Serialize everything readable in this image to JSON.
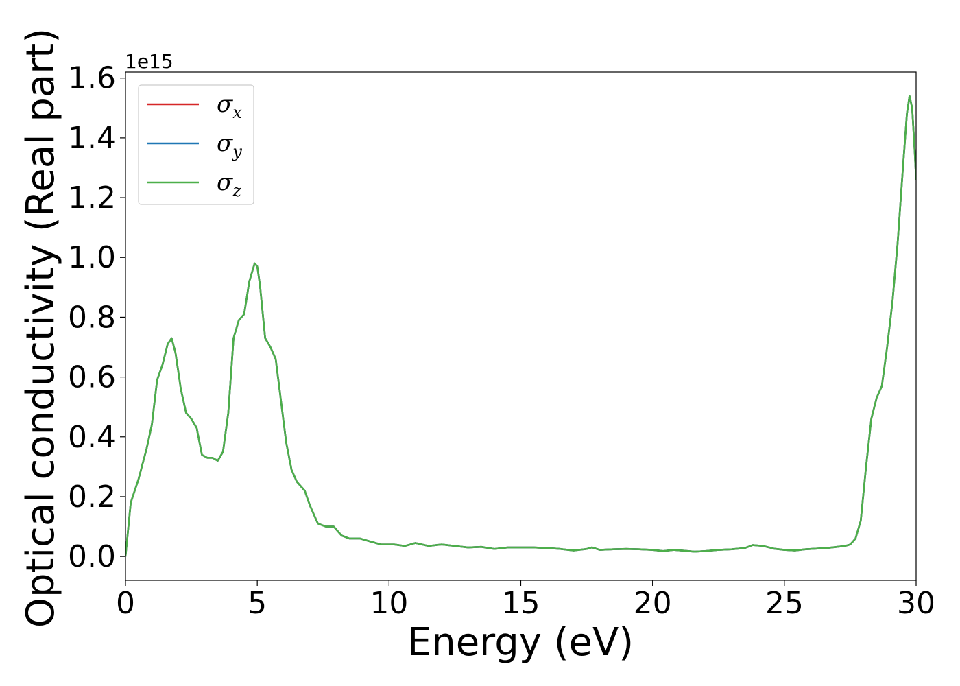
{
  "chart_data": {
    "type": "line",
    "xlabel": "Energy (eV)",
    "ylabel": "Optical conductivity (Real part)",
    "y_offset_text": "1e15",
    "xlim": [
      0,
      30
    ],
    "ylim": [
      -0.08,
      1.62
    ],
    "x_ticks": [
      0,
      5,
      10,
      15,
      20,
      25,
      30
    ],
    "x_tick_labels": [
      "0",
      "5",
      "10",
      "15",
      "20",
      "25",
      "30"
    ],
    "y_ticks": [
      0.0,
      0.2,
      0.4,
      0.6,
      0.8,
      1.0,
      1.2,
      1.4,
      1.6
    ],
    "y_tick_labels": [
      "0.0",
      "0.2",
      "0.4",
      "0.6",
      "0.8",
      "1.0",
      "1.2",
      "1.4",
      "1.6"
    ],
    "grid": false,
    "legend_position": "top-left",
    "x": [
      0,
      0.2,
      0.5,
      0.8,
      1.0,
      1.2,
      1.4,
      1.6,
      1.75,
      1.9,
      2.1,
      2.3,
      2.5,
      2.7,
      2.9,
      3.1,
      3.3,
      3.5,
      3.7,
      3.9,
      4.1,
      4.3,
      4.5,
      4.7,
      4.9,
      5.0,
      5.1,
      5.3,
      5.5,
      5.7,
      5.9,
      6.1,
      6.3,
      6.5,
      6.8,
      7.0,
      7.3,
      7.6,
      7.9,
      8.2,
      8.5,
      8.9,
      9.3,
      9.7,
      10.2,
      10.6,
      11.0,
      11.5,
      12.0,
      12.5,
      13.0,
      13.5,
      14.0,
      14.5,
      15.0,
      15.5,
      16.0,
      16.5,
      17.0,
      17.5,
      17.7,
      18.0,
      18.5,
      19.0,
      19.5,
      20.0,
      20.4,
      20.8,
      21.2,
      21.6,
      22.0,
      22.5,
      23.0,
      23.5,
      23.8,
      24.2,
      24.6,
      25.0,
      25.4,
      25.8,
      26.2,
      26.6,
      27.0,
      27.3,
      27.5,
      27.7,
      27.9,
      28.1,
      28.3,
      28.5,
      28.7,
      28.9,
      29.1,
      29.3,
      29.5,
      29.65,
      29.75,
      29.85,
      29.95,
      30.0
    ],
    "series": [
      {
        "name": "σx",
        "color": "#d62728",
        "values": [
          0.0,
          0.18,
          0.26,
          0.36,
          0.44,
          0.59,
          0.64,
          0.71,
          0.73,
          0.68,
          0.56,
          0.48,
          0.46,
          0.43,
          0.34,
          0.33,
          0.33,
          0.32,
          0.35,
          0.48,
          0.73,
          0.79,
          0.81,
          0.92,
          0.98,
          0.97,
          0.91,
          0.73,
          0.7,
          0.66,
          0.52,
          0.38,
          0.29,
          0.25,
          0.22,
          0.17,
          0.11,
          0.1,
          0.1,
          0.07,
          0.06,
          0.06,
          0.05,
          0.04,
          0.04,
          0.035,
          0.045,
          0.035,
          0.04,
          0.035,
          0.03,
          0.032,
          0.025,
          0.03,
          0.03,
          0.03,
          0.028,
          0.025,
          0.02,
          0.025,
          0.03,
          0.022,
          0.024,
          0.025,
          0.024,
          0.022,
          0.018,
          0.022,
          0.019,
          0.016,
          0.018,
          0.022,
          0.024,
          0.028,
          0.038,
          0.035,
          0.026,
          0.022,
          0.02,
          0.024,
          0.026,
          0.028,
          0.032,
          0.035,
          0.04,
          0.06,
          0.12,
          0.3,
          0.46,
          0.53,
          0.57,
          0.7,
          0.85,
          1.05,
          1.3,
          1.48,
          1.54,
          1.5,
          1.35,
          1.26
        ]
      },
      {
        "name": "σy",
        "color": "#1f77b4",
        "values": [
          0.0,
          0.18,
          0.26,
          0.36,
          0.44,
          0.59,
          0.64,
          0.71,
          0.73,
          0.68,
          0.56,
          0.48,
          0.46,
          0.43,
          0.34,
          0.33,
          0.33,
          0.32,
          0.35,
          0.48,
          0.73,
          0.79,
          0.81,
          0.92,
          0.98,
          0.97,
          0.91,
          0.73,
          0.7,
          0.66,
          0.52,
          0.38,
          0.29,
          0.25,
          0.22,
          0.17,
          0.11,
          0.1,
          0.1,
          0.07,
          0.06,
          0.06,
          0.05,
          0.04,
          0.04,
          0.035,
          0.045,
          0.035,
          0.04,
          0.035,
          0.03,
          0.032,
          0.025,
          0.03,
          0.03,
          0.03,
          0.028,
          0.025,
          0.02,
          0.025,
          0.03,
          0.022,
          0.024,
          0.025,
          0.024,
          0.022,
          0.018,
          0.022,
          0.019,
          0.016,
          0.018,
          0.022,
          0.024,
          0.028,
          0.038,
          0.035,
          0.026,
          0.022,
          0.02,
          0.024,
          0.026,
          0.028,
          0.032,
          0.035,
          0.04,
          0.06,
          0.12,
          0.3,
          0.46,
          0.53,
          0.57,
          0.7,
          0.85,
          1.05,
          1.3,
          1.48,
          1.54,
          1.5,
          1.35,
          1.26
        ]
      },
      {
        "name": "σz",
        "color": "#4daf4a",
        "values": [
          0.0,
          0.18,
          0.26,
          0.36,
          0.44,
          0.59,
          0.64,
          0.71,
          0.73,
          0.68,
          0.56,
          0.48,
          0.46,
          0.43,
          0.34,
          0.33,
          0.33,
          0.32,
          0.35,
          0.48,
          0.73,
          0.79,
          0.81,
          0.92,
          0.98,
          0.97,
          0.91,
          0.73,
          0.7,
          0.66,
          0.52,
          0.38,
          0.29,
          0.25,
          0.22,
          0.17,
          0.11,
          0.1,
          0.1,
          0.07,
          0.06,
          0.06,
          0.05,
          0.04,
          0.04,
          0.035,
          0.045,
          0.035,
          0.04,
          0.035,
          0.03,
          0.032,
          0.025,
          0.03,
          0.03,
          0.03,
          0.028,
          0.025,
          0.02,
          0.025,
          0.03,
          0.022,
          0.024,
          0.025,
          0.024,
          0.022,
          0.018,
          0.022,
          0.019,
          0.016,
          0.018,
          0.022,
          0.024,
          0.028,
          0.038,
          0.035,
          0.026,
          0.022,
          0.02,
          0.024,
          0.026,
          0.028,
          0.032,
          0.035,
          0.04,
          0.06,
          0.12,
          0.3,
          0.46,
          0.53,
          0.57,
          0.7,
          0.85,
          1.05,
          1.3,
          1.48,
          1.54,
          1.5,
          1.35,
          1.26
        ]
      }
    ],
    "legend": [
      {
        "symbol": "σ",
        "sub": "x",
        "color": "#d62728"
      },
      {
        "symbol": "σ",
        "sub": "y",
        "color": "#1f77b4"
      },
      {
        "symbol": "σ",
        "sub": "z",
        "color": "#4daf4a"
      }
    ]
  }
}
